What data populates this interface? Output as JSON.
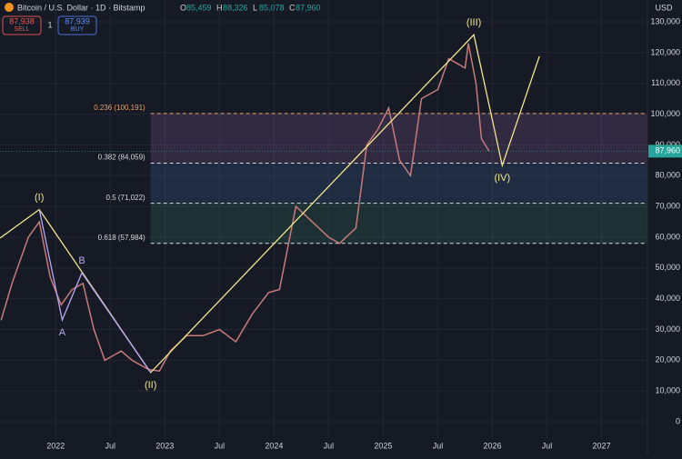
{
  "header": {
    "symbol": "Bitcoin / U.S. Dollar · 1D · Bitstamp",
    "ohlc": [
      {
        "key": "O",
        "value": "85,459"
      },
      {
        "key": "H",
        "value": "88,326"
      },
      {
        "key": "L",
        "value": "85,078"
      },
      {
        "key": "C",
        "value": "87,960"
      }
    ],
    "sell": {
      "price": "87,938",
      "label": "SELL"
    },
    "spread": "1",
    "buy": {
      "price": "87,939",
      "label": "BUY"
    },
    "currency": "USD"
  },
  "chart_data": {
    "type": "line",
    "grid": true,
    "xlim": [
      2021.49,
      2027.42
    ],
    "ylim": [
      -5300,
      137100
    ],
    "xticks": [
      2022,
      {
        "value": 2022.5,
        "label": "Jul"
      },
      2023,
      {
        "value": 2023.5,
        "label": "Jul"
      },
      2024,
      {
        "value": 2024.5,
        "label": "Jul"
      },
      2025,
      {
        "value": 2025.5,
        "label": "Jul"
      },
      2026,
      {
        "value": 2026.5,
        "label": "Jul"
      },
      2027
    ],
    "yticks": [
      0,
      {
        "value": 10000,
        "label": "10,000"
      },
      {
        "value": 20000,
        "label": "20,000"
      },
      {
        "value": 30000,
        "label": "30,000"
      },
      {
        "value": 40000,
        "label": "40,000"
      },
      {
        "value": 50000,
        "label": "50,000"
      },
      {
        "value": 60000,
        "label": "60,000"
      },
      {
        "value": 70000,
        "label": "70,000"
      },
      {
        "value": 80000,
        "label": "80,000"
      },
      {
        "value": 90000,
        "label": "90,000"
      },
      {
        "value": 100000,
        "label": "100,000"
      },
      {
        "value": 110000,
        "label": "110,000"
      },
      {
        "value": 120000,
        "label": "120,000"
      },
      {
        "value": 130000,
        "label": "130,000"
      }
    ],
    "x": [
      2021.5,
      2021.6,
      2021.75,
      2021.85,
      2021.95,
      2022.05,
      2022.15,
      2022.25,
      2022.35,
      2022.45,
      2022.6,
      2022.7,
      2022.85,
      2022.95,
      2023.05,
      2023.2,
      2023.35,
      2023.5,
      2023.65,
      2023.8,
      2023.95,
      2024.05,
      2024.2,
      2024.35,
      2024.5,
      2024.6,
      2024.75,
      2024.85,
      2024.95,
      2025.05,
      2025.15,
      2025.25,
      2025.35,
      2025.5,
      2025.6,
      2025.75,
      2025.78,
      2025.85,
      2025.9,
      2025.97
    ],
    "series": [
      {
        "color": "#c77a7a",
        "values": [
          33000,
          45000,
          60000,
          65000,
          47000,
          38000,
          43000,
          45000,
          30000,
          20000,
          23000,
          20000,
          17000,
          16500,
          23000,
          28000,
          28000,
          30000,
          26000,
          35000,
          42000,
          43000,
          70000,
          65000,
          60000,
          58000,
          63000,
          90000,
          95000,
          102000,
          85000,
          80000,
          105000,
          108000,
          118000,
          115000,
          123000,
          110000,
          92000,
          87960
        ]
      }
    ],
    "waves": [
      {
        "color": "#f0e68c",
        "labels": [
          null,
          "(I)",
          "(II)",
          "(III)",
          "(IV)",
          null
        ],
        "x": [
          2021.49,
          2021.85,
          2022.87,
          2025.83,
          2026.09,
          2026.43
        ],
        "values": [
          59700,
          69000,
          16000,
          125800,
          83300,
          118800
        ]
      },
      {
        "color": "#b8a6f0",
        "labels": [
          null,
          "A",
          "B",
          null
        ],
        "x": [
          2021.85,
          2022.06,
          2022.24,
          2022.87
        ],
        "values": [
          69000,
          33100,
          48400,
          16000
        ]
      }
    ],
    "fib_start": 2022.87,
    "fib_levels": [
      {
        "label": "0.236 (100,191)",
        "value": 100191,
        "color": "#e8a060",
        "band_color": "rgba(130,90,150,0.25)"
      },
      {
        "label": "0.382 (84,059)",
        "value": 84059,
        "color": "#d8d8d8",
        "band_color": "rgba(60,95,140,0.28)"
      },
      {
        "label": "0.5 (71,022)",
        "value": 71022,
        "color": "#d8d8d8",
        "band_color": "rgba(50,110,95,0.28)"
      },
      {
        "label": "0.618 (57,984)",
        "value": 57984,
        "color": "#d8d8d8"
      }
    ],
    "last_price": {
      "value": 87960,
      "label": "87,960",
      "color": "#26a69a"
    }
  }
}
